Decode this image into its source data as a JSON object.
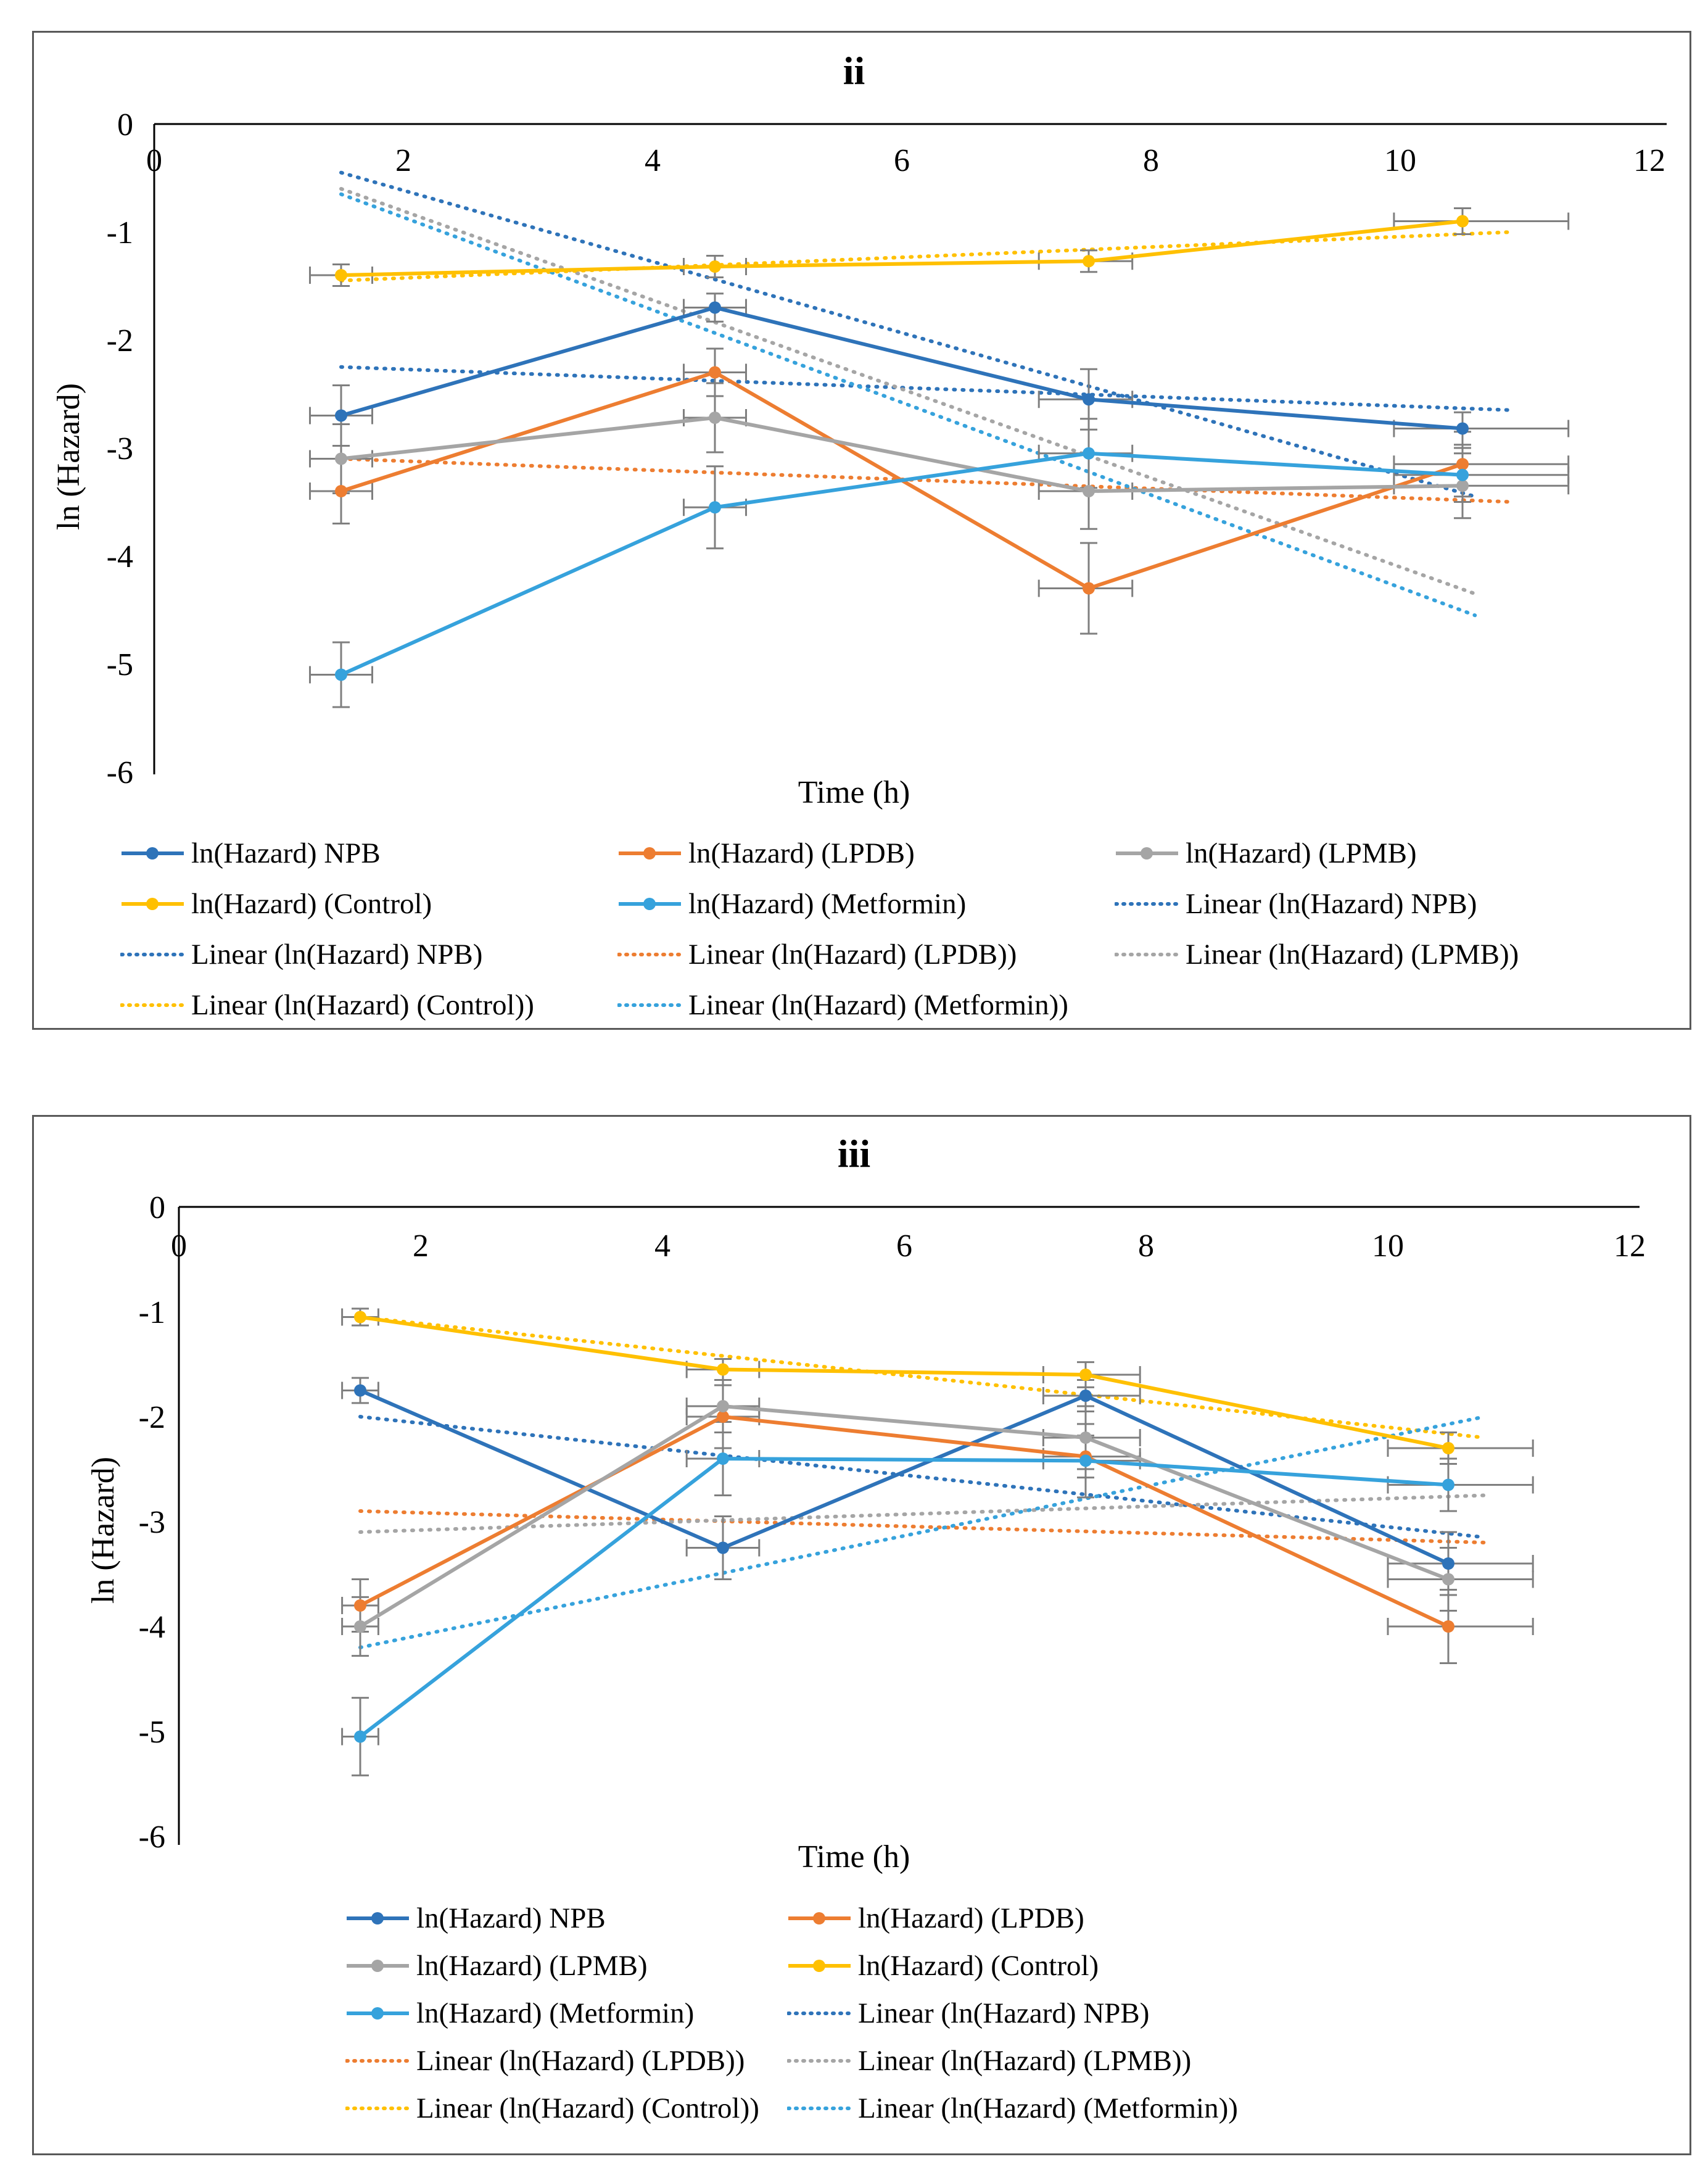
{
  "page": {
    "background": "#FFFFFF"
  },
  "colors": {
    "npb": "#2E73B9",
    "lpdb": "#ED7D31",
    "lpmb": "#A5A5A5",
    "control": "#FFC000",
    "metformin": "#36A2DC",
    "error_bar": "#7F7F7F",
    "axis": "#000000",
    "frame": "#595959"
  },
  "chart_data": [
    {
      "type": "line",
      "title": "ii",
      "xlabel": "Time (h)",
      "ylabel": "ln (Hazard)",
      "x_ticks": [
        0,
        2,
        4,
        6,
        8,
        10,
        12
      ],
      "y_ticks": [
        0,
        -1,
        -2,
        -3,
        -4,
        -5,
        -6
      ],
      "xlim": [
        0,
        12.4
      ],
      "ylim": [
        -6,
        0
      ],
      "grid": "off",
      "legend_position": "bottom",
      "legend_columns": 3,
      "x": [
        1.5,
        4.5,
        7.5,
        10.5
      ],
      "x_error": [
        [
          0.25,
          0.25
        ],
        [
          0.25,
          0.25
        ],
        [
          0.4,
          0.35
        ],
        [
          0.55,
          0.85
        ]
      ],
      "series": [
        {
          "key": "npb",
          "name": "ln(Hazard) NPB",
          "color": "#2E73B9",
          "values": [
            -2.7,
            -1.7,
            -2.55,
            -2.82
          ],
          "y_error": [
            0.28,
            0.13,
            0.28,
            0.15
          ]
        },
        {
          "key": "lpdb",
          "name": "ln(Hazard) (LPDB)",
          "color": "#ED7D31",
          "values": [
            -3.4,
            -2.3,
            -4.3,
            -3.15
          ],
          "y_error": [
            0.3,
            0.22,
            0.42,
            0.3
          ]
        },
        {
          "key": "lpmb",
          "name": "ln(Hazard) (LPMB)",
          "color": "#A5A5A5",
          "values": [
            -3.1,
            -2.72,
            -3.4,
            -3.35
          ],
          "y_error": [
            0.32,
            0.32,
            0.35,
            0.3
          ]
        },
        {
          "key": "control",
          "name": "ln(Hazard) (Control)",
          "color": "#FFC000",
          "values": [
            -1.4,
            -1.32,
            -1.27,
            -0.9
          ],
          "y_error": [
            0.1,
            0.1,
            0.1,
            0.12
          ]
        },
        {
          "key": "metformin",
          "name": "ln(Hazard) (Metformin)",
          "color": "#36A2DC",
          "values": [
            -5.1,
            -3.55,
            -3.05,
            -3.25
          ],
          "y_error": [
            0.3,
            0.38,
            0.32,
            0.25
          ]
        }
      ],
      "trendlines": [
        {
          "key": "linear-npb-a",
          "name": "Linear (ln(Hazard) NPB)",
          "color": "#2E73B9",
          "x1": 1.5,
          "y1": -0.45,
          "x2": 10.6,
          "y2": -3.45
        },
        {
          "key": "linear-npb-b",
          "name": "Linear (ln(Hazard) NPB)",
          "color": "#2E73B9",
          "x1": 1.5,
          "y1": -2.25,
          "x2": 10.9,
          "y2": -2.65
        },
        {
          "key": "linear-lpdb",
          "name": "Linear (ln(Hazard) (LPDB))",
          "color": "#ED7D31",
          "x1": 1.5,
          "y1": -3.1,
          "x2": 10.9,
          "y2": -3.5
        },
        {
          "key": "linear-lpmb",
          "name": "Linear (ln(Hazard) (LPMB))",
          "color": "#A5A5A5",
          "x1": 1.5,
          "y1": -0.6,
          "x2": 10.6,
          "y2": -4.35
        },
        {
          "key": "linear-control",
          "name": "Linear (ln(Hazard) (Control))",
          "color": "#FFC000",
          "x1": 1.5,
          "y1": -1.45,
          "x2": 10.9,
          "y2": -1.0
        },
        {
          "key": "linear-metformin",
          "name": "Linear (ln(Hazard) (Metformin))",
          "color": "#36A2DC",
          "x1": 1.5,
          "y1": -0.65,
          "x2": 10.6,
          "y2": -4.55
        }
      ],
      "legend_items": [
        {
          "label": "ln(Hazard) NPB",
          "style": "solid",
          "color": "#2E73B9"
        },
        {
          "label": "ln(Hazard) (LPDB)",
          "style": "solid",
          "color": "#ED7D31"
        },
        {
          "label": "ln(Hazard) (LPMB)",
          "style": "solid",
          "color": "#A5A5A5"
        },
        {
          "label": "ln(Hazard) (Control)",
          "style": "solid",
          "color": "#FFC000"
        },
        {
          "label": "ln(Hazard) (Metformin)",
          "style": "solid",
          "color": "#36A2DC"
        },
        {
          "label": "Linear (ln(Hazard) NPB)",
          "style": "dotted",
          "color": "#2E73B9"
        },
        {
          "label": "Linear (ln(Hazard) NPB)",
          "style": "dotted",
          "color": "#2E73B9"
        },
        {
          "label": "Linear (ln(Hazard) (LPDB))",
          "style": "dotted",
          "color": "#ED7D31"
        },
        {
          "label": "Linear (ln(Hazard) (LPMB))",
          "style": "dotted",
          "color": "#A5A5A5"
        },
        {
          "label": "Linear (ln(Hazard) (Control))",
          "style": "dotted",
          "color": "#FFC000"
        },
        {
          "label": "Linear (ln(Hazard) (Metformin))",
          "style": "dotted",
          "color": "#36A2DC"
        }
      ]
    },
    {
      "type": "line",
      "title": "iii",
      "xlabel": "Time (h)",
      "ylabel": "ln (Hazard)",
      "x_ticks": [
        0,
        2,
        4,
        6,
        8,
        10,
        12
      ],
      "y_ticks": [
        0,
        -1,
        -2,
        -3,
        -4,
        -5,
        -6
      ],
      "xlim": [
        0,
        12.4
      ],
      "ylim": [
        -6,
        0
      ],
      "grid": "off",
      "legend_position": "bottom",
      "legend_columns": 2,
      "x": [
        1.5,
        4.5,
        7.5,
        10.5
      ],
      "x_error": [
        [
          0.15,
          0.15
        ],
        [
          0.3,
          0.3
        ],
        [
          0.35,
          0.45
        ],
        [
          0.5,
          0.7
        ]
      ],
      "series": [
        {
          "key": "npb",
          "name": "ln(Hazard) NPB",
          "color": "#2E73B9",
          "values": [
            -1.75,
            -3.25,
            -1.8,
            -3.4
          ],
          "y_error": [
            0.12,
            0.3,
            0.15,
            0.3
          ]
        },
        {
          "key": "lpdb",
          "name": "ln(Hazard) (LPDB)",
          "color": "#ED7D31",
          "values": [
            -3.8,
            -2.0,
            -2.38,
            -4.0
          ],
          "y_error": [
            0.25,
            0.3,
            0.2,
            0.35
          ]
        },
        {
          "key": "lpmb",
          "name": "ln(Hazard) (LPMB)",
          "color": "#A5A5A5",
          "values": [
            -4.0,
            -1.9,
            -2.2,
            -3.55
          ],
          "y_error": [
            0.28,
            0.25,
            0.3,
            0.3
          ]
        },
        {
          "key": "control",
          "name": "ln(Hazard) (Control)",
          "color": "#FFC000",
          "values": [
            -1.05,
            -1.55,
            -1.6,
            -2.3
          ],
          "y_error": [
            0.08,
            0.1,
            0.12,
            0.15
          ]
        },
        {
          "key": "metformin",
          "name": "ln(Hazard) (Metformin)",
          "color": "#36A2DC",
          "values": [
            -5.05,
            -2.4,
            -2.42,
            -2.65
          ],
          "y_error": [
            0.37,
            0.35,
            0.35,
            0.25
          ]
        }
      ],
      "trendlines": [
        {
          "key": "linear-npb",
          "name": "Linear (ln(Hazard) NPB)",
          "color": "#2E73B9",
          "x1": 1.5,
          "y1": -2.0,
          "x2": 10.8,
          "y2": -3.15
        },
        {
          "key": "linear-lpdb",
          "name": "Linear (ln(Hazard) (LPDB))",
          "color": "#ED7D31",
          "x1": 1.5,
          "y1": -2.9,
          "x2": 10.8,
          "y2": -3.2
        },
        {
          "key": "linear-lpmb",
          "name": "Linear (ln(Hazard) (LPMB))",
          "color": "#A5A5A5",
          "x1": 1.5,
          "y1": -3.1,
          "x2": 10.8,
          "y2": -2.75
        },
        {
          "key": "linear-control",
          "name": "Linear (ln(Hazard) (Control))",
          "color": "#FFC000",
          "x1": 1.5,
          "y1": -1.05,
          "x2": 10.8,
          "y2": -2.2
        },
        {
          "key": "linear-metformin",
          "name": "Linear (ln(Hazard) (Metformin))",
          "color": "#36A2DC",
          "x1": 1.5,
          "y1": -4.2,
          "x2": 10.8,
          "y2": -2.0
        }
      ],
      "legend_items": [
        {
          "label": "ln(Hazard) NPB",
          "style": "solid",
          "color": "#2E73B9"
        },
        {
          "label": "ln(Hazard) (LPDB)",
          "style": "solid",
          "color": "#ED7D31"
        },
        {
          "label": "ln(Hazard) (LPMB)",
          "style": "solid",
          "color": "#A5A5A5"
        },
        {
          "label": "ln(Hazard) (Control)",
          "style": "solid",
          "color": "#FFC000"
        },
        {
          "label": "ln(Hazard) (Metformin)",
          "style": "solid",
          "color": "#36A2DC"
        },
        {
          "label": "Linear (ln(Hazard) NPB)",
          "style": "dotted",
          "color": "#2E73B9"
        },
        {
          "label": "Linear (ln(Hazard) (LPDB))",
          "style": "dotted",
          "color": "#ED7D31"
        },
        {
          "label": "Linear (ln(Hazard) (LPMB))",
          "style": "dotted",
          "color": "#A5A5A5"
        },
        {
          "label": "Linear (ln(Hazard) (Control))",
          "style": "dotted",
          "color": "#FFC000"
        },
        {
          "label": "Linear (ln(Hazard) (Metformin))",
          "style": "dotted",
          "color": "#36A2DC"
        }
      ]
    }
  ]
}
